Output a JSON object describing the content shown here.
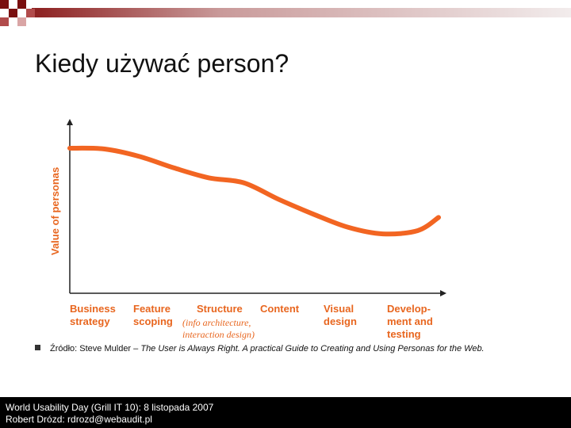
{
  "slide": {
    "title": "Kiedy używać person?"
  },
  "chart_data": {
    "type": "line",
    "ylabel": "Value of personas",
    "categories": [
      {
        "label": "Business\nstrategy",
        "note": ""
      },
      {
        "label": "Feature\nscoping",
        "note": ""
      },
      {
        "label": "Structure",
        "note": "(info architecture,\ninteraction design)"
      },
      {
        "label": "Content",
        "note": ""
      },
      {
        "label": "Visual\ndesign",
        "note": ""
      },
      {
        "label": "Develop-\nment and\ntesting",
        "note": ""
      }
    ],
    "x": [
      0,
      0.5,
      1,
      1.5,
      2,
      2.5,
      3,
      3.5,
      4,
      4.5,
      5,
      5.3
    ],
    "values": [
      0.88,
      0.875,
      0.83,
      0.76,
      0.7,
      0.67,
      0.57,
      0.48,
      0.4,
      0.36,
      0.38,
      0.46
    ],
    "ylim": [
      0,
      1
    ],
    "grid": false,
    "line_color": "#f26522",
    "axis_color": "#222222",
    "label_color": "#e8661f"
  },
  "source": {
    "prefix": "Źródło: Steve Mulder – ",
    "book": "The User is Always Right. A practical Guide to Creating and Using Personas for the Web."
  },
  "footer": {
    "line1": "World Usability Day (Grill IT 10): 8 listopada 2007",
    "line2": "Robert Drózd: rdrozd@webaudit.pl"
  },
  "colors": {
    "title_band_dark": "#7a0f0f",
    "title_band_mid": "#b14b4b",
    "title_band_light": "#e7d6d6"
  }
}
